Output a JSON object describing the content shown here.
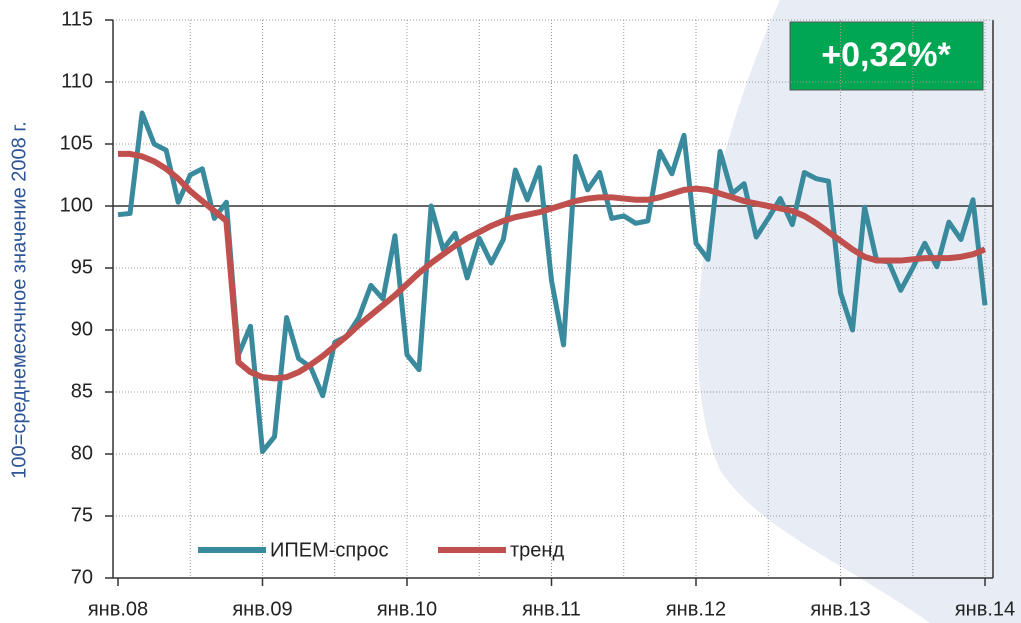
{
  "chart_data": {
    "type": "line",
    "y_label": "100=среднемесячное значение 2008 г.",
    "badge": "+0,32%*",
    "categories": [
      "янв.08",
      null,
      null,
      null,
      null,
      null,
      null,
      null,
      null,
      null,
      null,
      null,
      "янв.09",
      null,
      null,
      null,
      null,
      null,
      null,
      null,
      null,
      null,
      null,
      null,
      "янв.10",
      null,
      null,
      null,
      null,
      null,
      null,
      null,
      null,
      null,
      null,
      null,
      "янв.11",
      null,
      null,
      null,
      null,
      null,
      null,
      null,
      null,
      null,
      null,
      null,
      "янв.12",
      null,
      null,
      null,
      null,
      null,
      null,
      null,
      null,
      null,
      null,
      null,
      "янв.13",
      null,
      null,
      null,
      null,
      null,
      null,
      null,
      null,
      null,
      null,
      null,
      "янв.14"
    ],
    "series": [
      {
        "name": "ИПЕМ-спрос",
        "color": "#3a8a9e",
        "values": [
          99.3,
          99.4,
          107.5,
          105,
          104.5,
          100.3,
          102.5,
          103,
          99,
          100.3,
          88,
          90.3,
          80.2,
          81.4,
          91,
          87.7,
          87,
          84.7,
          89,
          89.5,
          91,
          93.6,
          92.5,
          97.6,
          88,
          86.8,
          100,
          96.5,
          97.8,
          94.2,
          97.4,
          95.4,
          97.3,
          102.9,
          100.5,
          103.1,
          94,
          88.8,
          104,
          101.3,
          102.7,
          99,
          99.2,
          98.6,
          98.8,
          104.4,
          102.6,
          105.7,
          97,
          95.7,
          104.4,
          101,
          101.8,
          97.5,
          99,
          100.6,
          98.5,
          102.7,
          102.2,
          102,
          93,
          90,
          99.9,
          95.6,
          95.5,
          93.2,
          95,
          97,
          95.1,
          98.7,
          97.3,
          100.5,
          92
        ]
      },
      {
        "name": "тренд",
        "color": "#c0504d",
        "values": [
          104.2,
          104.2,
          104.0,
          103.6,
          103.0,
          102.2,
          101.2,
          100.4,
          99.6,
          98.8,
          87.4,
          86.6,
          86.2,
          86.1,
          86.2,
          86.6,
          87.2,
          87.9,
          88.7,
          89.5,
          90.4,
          91.2,
          92,
          92.8,
          93.7,
          94.6,
          95.4,
          96.1,
          96.8,
          97.4,
          97.9,
          98.4,
          98.8,
          99.1,
          99.3,
          99.5,
          99.8,
          100.1,
          100.4,
          100.6,
          100.7,
          100.7,
          100.6,
          100.5,
          100.5,
          100.7,
          101,
          101.3,
          101.4,
          101.3,
          101,
          100.7,
          100.4,
          100.2,
          100,
          99.8,
          99.6,
          99.2,
          98.6,
          97.9,
          97.2,
          96.5,
          95.9,
          95.6,
          95.6,
          95.6,
          95.7,
          95.8,
          95.8,
          95.8,
          95.9,
          96.1,
          96.5
        ]
      }
    ],
    "ylim": [
      70,
      115
    ],
    "yticks": [
      70,
      75,
      80,
      85,
      90,
      95,
      100,
      105,
      110,
      115
    ],
    "reference_line": 100,
    "grid": true
  }
}
